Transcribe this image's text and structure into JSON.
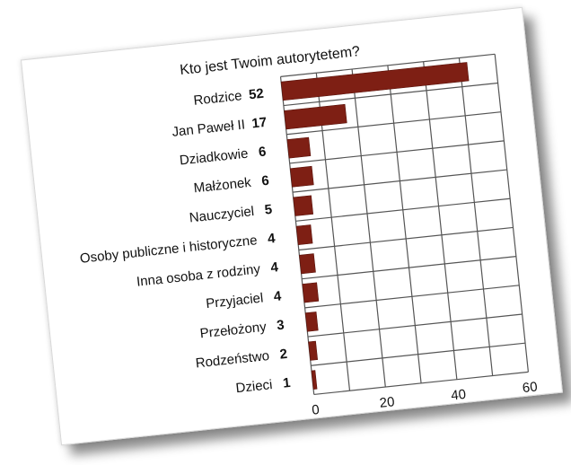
{
  "chart_data": {
    "type": "bar",
    "orientation": "horizontal",
    "title": "Kto jest Twoim autorytetem?",
    "categories": [
      "Rodzice",
      "Jan Paweł II",
      "Dziadkowie",
      "Małżonek",
      "Nauczyciel",
      "Osoby publiczne i historyczne",
      "Inna osoba z rodziny",
      "Przyjaciel",
      "Przełożony",
      "Rodzeństwo",
      "Dzieci"
    ],
    "values": [
      52,
      17,
      6,
      6,
      5,
      4,
      4,
      4,
      3,
      2,
      1
    ],
    "value_labels": [
      "52",
      "17",
      "6",
      "6",
      "5",
      "4",
      "4",
      "4",
      "3",
      "2",
      "1"
    ],
    "xlim": [
      0,
      60
    ],
    "xticks": [
      "0",
      "20",
      "40",
      "60"
    ],
    "grid": true,
    "bar_color": "#7e1f14"
  }
}
